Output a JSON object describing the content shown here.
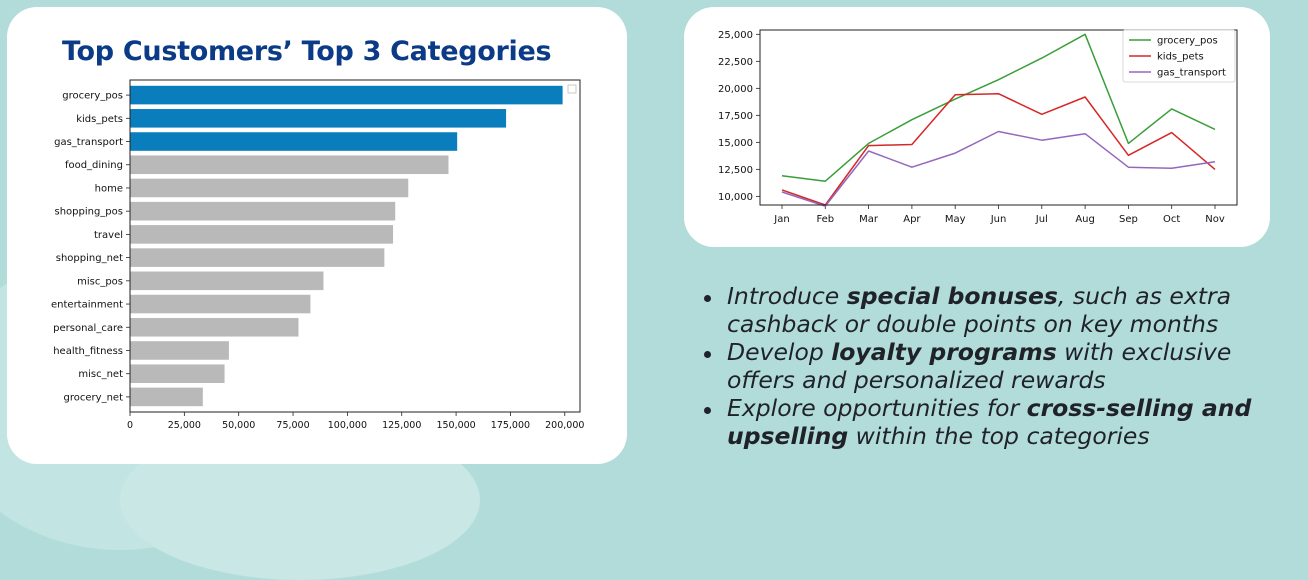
{
  "chart_data": [
    {
      "type": "bar",
      "orientation": "horizontal",
      "title": "Top Customers’ Top 3 Categories",
      "categories": [
        "grocery_pos",
        "kids_pets",
        "gas_transport",
        "food_dining",
        "home",
        "shopping_pos",
        "travel",
        "shopping_net",
        "misc_pos",
        "entertainment",
        "personal_care",
        "health_fitness",
        "misc_net",
        "grocery_net"
      ],
      "values": [
        199000,
        173000,
        150500,
        146500,
        128000,
        122000,
        121000,
        117000,
        89000,
        83000,
        77500,
        45500,
        43500,
        33500
      ],
      "highlighted_count": 3,
      "colors": {
        "highlight": "#0a7ebd",
        "default": "#b9b9b9"
      },
      "xlim": [
        0,
        207000
      ],
      "xticks": [
        0,
        25000,
        50000,
        75000,
        100000,
        125000,
        150000,
        175000,
        200000
      ],
      "xtick_labels": [
        "0",
        "25,000",
        "50,000",
        "75,000",
        "100,000",
        "125,000",
        "150,000",
        "175,000",
        "200,000"
      ],
      "legend": "top-right"
    },
    {
      "type": "line",
      "x": [
        "Jan",
        "Feb",
        "Mar",
        "Apr",
        "May",
        "Jun",
        "Jul",
        "Aug",
        "Sep",
        "Oct",
        "Nov"
      ],
      "series": [
        {
          "name": "grocery_pos",
          "color": "#3a9e3a",
          "values": [
            11900,
            11400,
            14900,
            17100,
            19000,
            20800,
            22800,
            25000,
            14900,
            18100,
            16200
          ]
        },
        {
          "name": "kids_pets",
          "color": "#d62728",
          "values": [
            10600,
            9200,
            14700,
            14800,
            19400,
            19500,
            17600,
            19200,
            13800,
            15900,
            12500
          ]
        },
        {
          "name": "gas_transport",
          "color": "#9467bd",
          "values": [
            10400,
            9100,
            14200,
            12700,
            14000,
            16000,
            15200,
            15800,
            12700,
            12600,
            13200
          ]
        }
      ],
      "ylim": [
        9200,
        25400
      ],
      "yticks": [
        10000,
        12500,
        15000,
        17500,
        20000,
        22500,
        25000
      ],
      "ytick_labels": [
        "10,000",
        "12,500",
        "15,000",
        "17,500",
        "20,000",
        "22,500",
        "25,000"
      ],
      "legend": "top-right"
    }
  ],
  "bullets": [
    {
      "pre": "Introduce ",
      "bold": "special bonuses",
      "post": ", such as extra cashback or double points on key months"
    },
    {
      "pre": "Develop ",
      "bold": "loyalty programs",
      "post": " with exclusive offers and personalized rewards"
    },
    {
      "pre": "Explore opportunities for ",
      "bold": "cross-selling and upselling",
      "post": " within the top categories"
    }
  ]
}
